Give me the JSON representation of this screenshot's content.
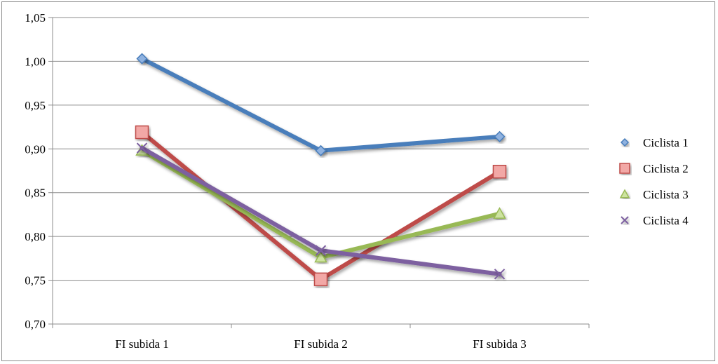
{
  "chart_data": {
    "type": "line",
    "categories": [
      "FI subida 1",
      "FI subida 2",
      "FI subida 3"
    ],
    "series": [
      {
        "name": "Ciclista 1",
        "values": [
          1.003,
          0.898,
          0.914
        ],
        "color": "#4a7ebb",
        "marker": "diamond"
      },
      {
        "name": "Ciclista 2",
        "values": [
          0.919,
          0.751,
          0.874
        ],
        "color": "#be4b48",
        "marker": "square"
      },
      {
        "name": "Ciclista 3",
        "values": [
          0.898,
          0.776,
          0.826
        ],
        "color": "#98b954",
        "marker": "triangle"
      },
      {
        "name": "Ciclista 4",
        "values": [
          0.901,
          0.784,
          0.757
        ],
        "color": "#7d60a0",
        "marker": "x"
      }
    ],
    "y_ticks": [
      "0,70",
      "0,75",
      "0,80",
      "0,85",
      "0,90",
      "0,95",
      "1,00",
      "1,05"
    ],
    "ylim": [
      0.7,
      1.05
    ],
    "grid": true,
    "legend_position": "right"
  }
}
